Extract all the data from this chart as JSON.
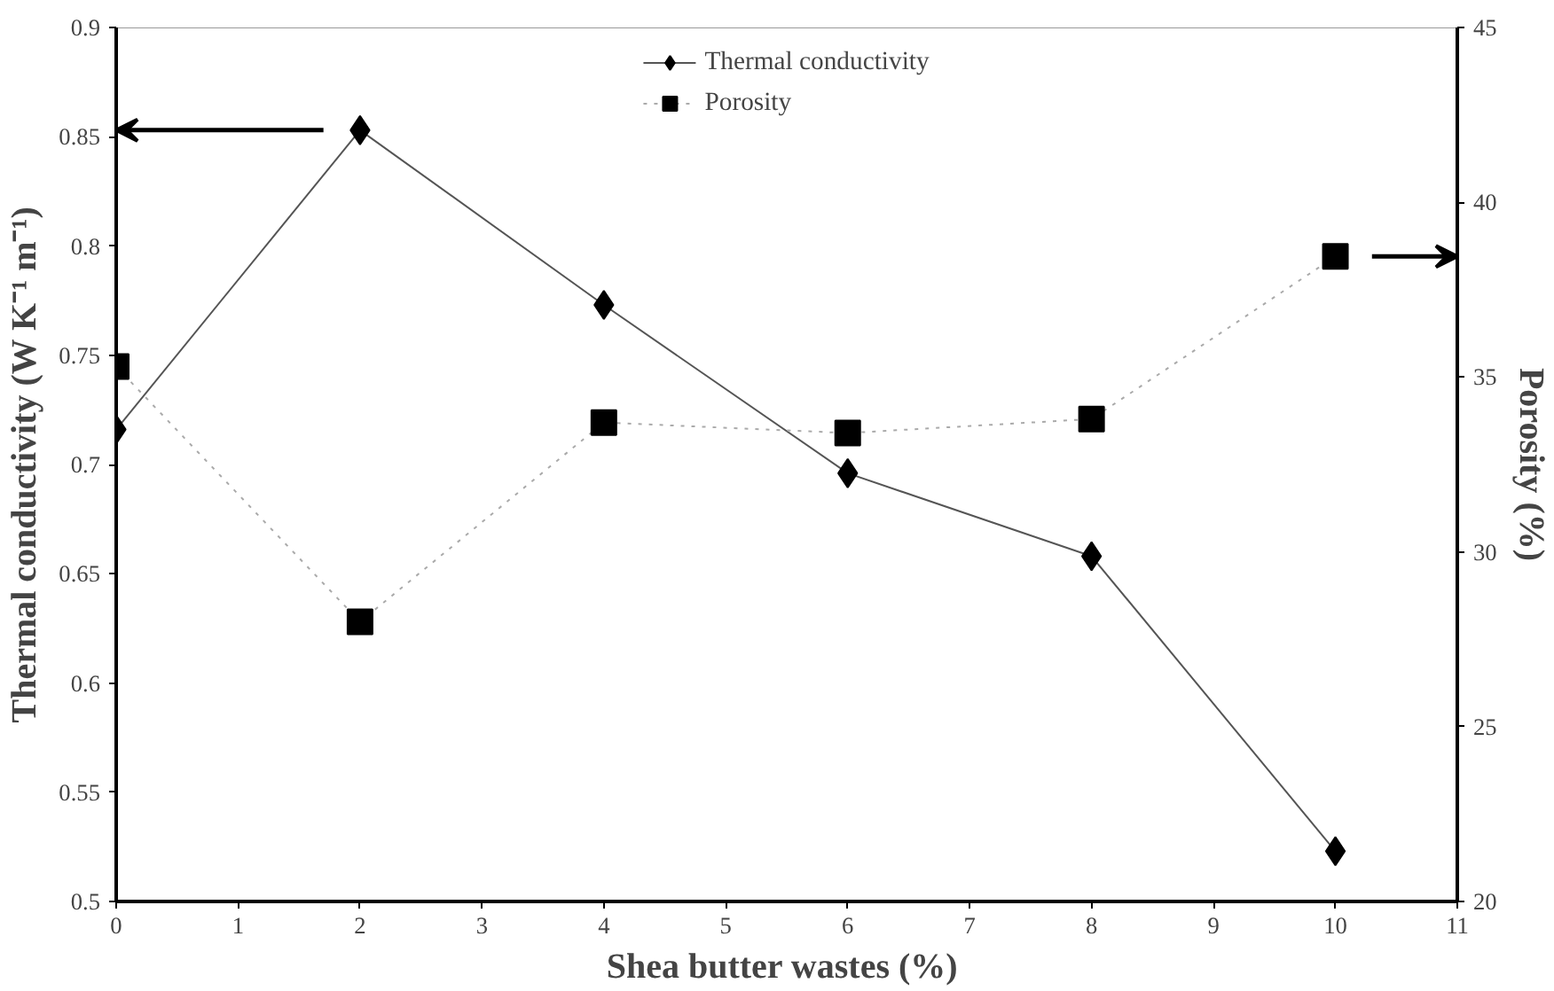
{
  "chart_data": {
    "type": "line",
    "xlabel": "Shea butter wastes  (%)",
    "ylabel": "Thermal conductivity (W K⁻¹ m⁻¹)",
    "y2label": "Porosity (%)",
    "xlim": [
      0,
      11
    ],
    "xticks": [
      0,
      1,
      2,
      3,
      4,
      5,
      6,
      7,
      8,
      9,
      10,
      11
    ],
    "ylim": [
      0.5,
      0.9
    ],
    "yticks": [
      0.5,
      0.55,
      0.6,
      0.65,
      0.7,
      0.75,
      0.8,
      0.85,
      0.9
    ],
    "y2lim": [
      20,
      45
    ],
    "y2ticks": [
      20,
      25,
      30,
      35,
      40,
      45
    ],
    "grid": false,
    "legend": "top",
    "series": [
      {
        "name": "Thermal conductivity",
        "color": "#000000",
        "marker": "diamond",
        "line_style": "solid",
        "x": [
          0,
          2,
          4,
          6,
          8,
          10
        ],
        "values": [
          0.716,
          0.853,
          0.773,
          0.696,
          0.658,
          0.523
        ]
      },
      {
        "name": "Porosity",
        "color": "#000000",
        "marker": "square",
        "line_style": "dotted",
        "axis": "y2",
        "x": [
          0,
          2,
          4,
          6,
          8,
          10
        ],
        "values": [
          35.3,
          28.0,
          33.7,
          33.4,
          33.8,
          38.45
        ]
      }
    ]
  }
}
